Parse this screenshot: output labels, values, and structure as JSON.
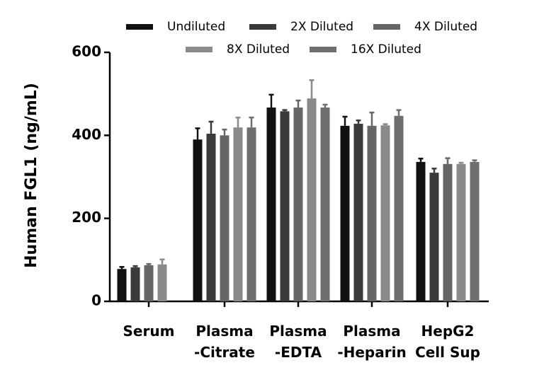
{
  "chart_data": {
    "type": "bar",
    "ylabel": "Human FGL1 (ng/mL)",
    "categories": [
      "Serum",
      "Plasma\n-Citrate",
      "Plasma\n-EDTA",
      "Plasma\n-Heparin",
      "HepG2\nCell Sup"
    ],
    "series": [
      {
        "name": "Undiluted",
        "color": "#111111",
        "values": [
          78,
          390,
          467,
          423,
          336
        ],
        "errors": [
          5,
          27,
          31,
          22,
          8
        ]
      },
      {
        "name": "2X Diluted",
        "color": "#3a3a3a",
        "values": [
          82,
          404,
          458,
          428,
          310
        ],
        "errors": [
          3,
          29,
          3,
          8,
          10
        ]
      },
      {
        "name": "4X Diluted",
        "color": "#666666",
        "values": [
          87,
          400,
          467,
          423,
          331
        ],
        "errors": [
          3,
          14,
          17,
          32,
          14
        ]
      },
      {
        "name": "8X Diluted",
        "color": "#8a8a8a",
        "values": [
          89,
          419,
          489,
          424,
          331
        ],
        "errors": [
          12,
          24,
          44,
          3,
          3
        ]
      },
      {
        "name": "16X Diluted",
        "color": "#6e6e6e",
        "values": [
          null,
          419,
          467,
          447,
          336
        ],
        "errors": [
          null,
          24,
          7,
          14,
          4
        ]
      }
    ],
    "ylim": [
      0,
      600
    ],
    "yticks": [
      0,
      200,
      400,
      600
    ]
  }
}
